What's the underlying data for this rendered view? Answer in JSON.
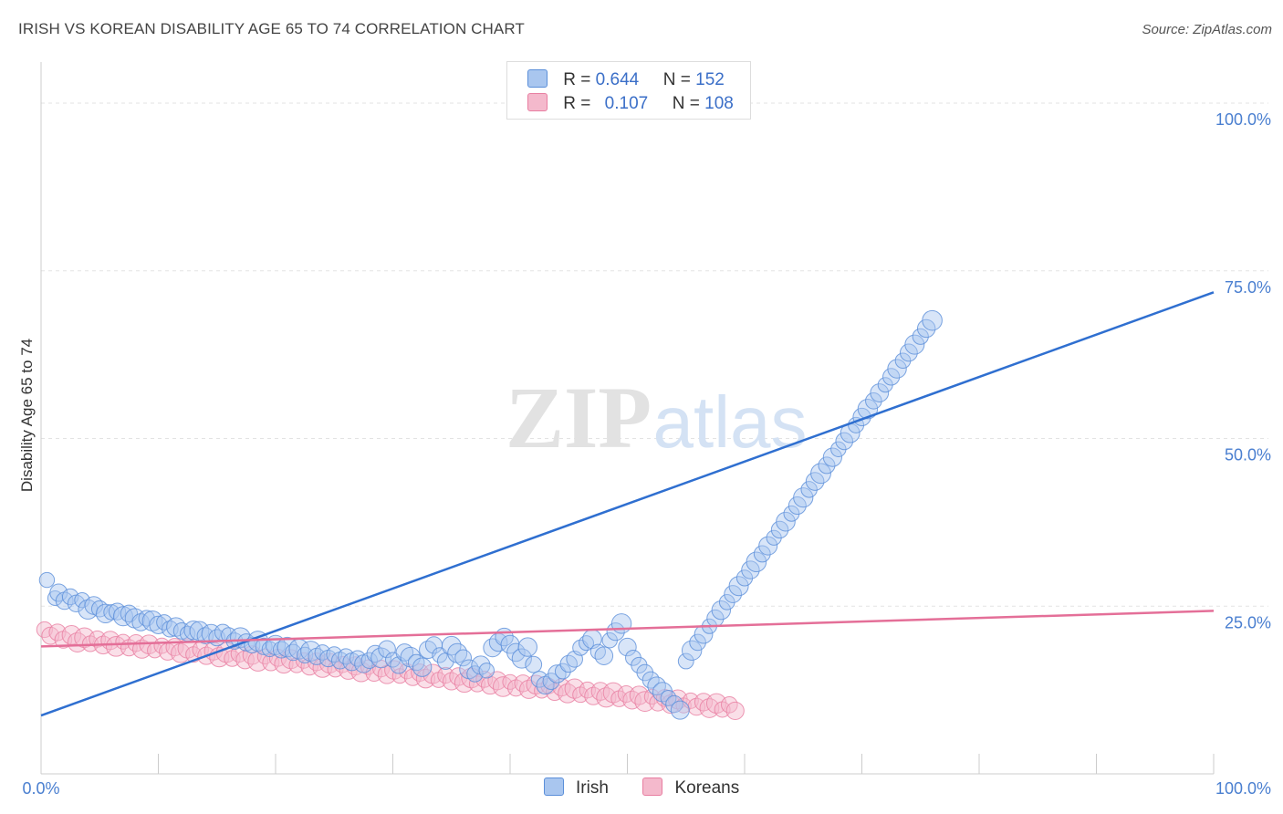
{
  "title": "IRISH VS KOREAN DISABILITY AGE 65 TO 74 CORRELATION CHART",
  "source": "Source: ZipAtlas.com",
  "watermark": {
    "zip": "ZIP",
    "atlas": "atlas"
  },
  "chart_data": {
    "type": "scatter",
    "ylabel": "Disability Age 65 to 74",
    "xlim": [
      0,
      100
    ],
    "ylim": [
      0,
      100
    ],
    "x_tick_labels": [
      "0.0%",
      "100.0%"
    ],
    "y_tick_labels": [
      {
        "value": 25,
        "label": "25.0%"
      },
      {
        "value": 50,
        "label": "50.0%"
      },
      {
        "value": 75,
        "label": "75.0%"
      },
      {
        "value": 100,
        "label": "100.0%"
      }
    ],
    "grid": "horizontal dashed",
    "legend": [
      {
        "series": "Irish",
        "r_label": "R =",
        "r": "0.644",
        "n_label": "N =",
        "n": "152"
      },
      {
        "series": "Koreans",
        "r_label": "R =",
        "r": "0.107",
        "n_label": "N =",
        "n": "108"
      }
    ],
    "series": [
      {
        "name": "Irish",
        "color": "#5b8fd9",
        "fill": "#a9c6ef",
        "trend": {
          "x": [
            0,
            100
          ],
          "y": [
            8.7,
            71.8
          ]
        },
        "points": [
          [
            0.5,
            28.9
          ],
          [
            1.2,
            26.2
          ],
          [
            1.5,
            27.0
          ],
          [
            2.0,
            25.8
          ],
          [
            2.5,
            26.4
          ],
          [
            3.0,
            25.4
          ],
          [
            3.5,
            25.9
          ],
          [
            4.0,
            24.5
          ],
          [
            4.5,
            25.1
          ],
          [
            5.0,
            24.6
          ],
          [
            5.5,
            23.9
          ],
          [
            6.0,
            24.1
          ],
          [
            6.5,
            24.2
          ],
          [
            7.0,
            23.5
          ],
          [
            7.5,
            23.9
          ],
          [
            8.0,
            23.2
          ],
          [
            8.5,
            22.6
          ],
          [
            9.0,
            23.2
          ],
          [
            9.5,
            22.8
          ],
          [
            10.0,
            22.2
          ],
          [
            10.5,
            22.6
          ],
          [
            11.0,
            21.6
          ],
          [
            11.5,
            21.9
          ],
          [
            12.0,
            21.3
          ],
          [
            12.5,
            20.9
          ],
          [
            13.0,
            21.4
          ],
          [
            13.5,
            21.3
          ],
          [
            14.0,
            20.6
          ],
          [
            14.5,
            20.9
          ],
          [
            15.0,
            20.3
          ],
          [
            15.5,
            21.1
          ],
          [
            16.0,
            20.7
          ],
          [
            16.5,
            19.8
          ],
          [
            17.0,
            20.3
          ],
          [
            17.5,
            19.6
          ],
          [
            18.0,
            19.2
          ],
          [
            18.5,
            19.8
          ],
          [
            19.0,
            19.0
          ],
          [
            19.5,
            18.6
          ],
          [
            20.0,
            19.2
          ],
          [
            20.5,
            18.5
          ],
          [
            21.0,
            18.9
          ],
          [
            21.5,
            18.1
          ],
          [
            22.0,
            18.6
          ],
          [
            22.5,
            17.7
          ],
          [
            23.0,
            18.3
          ],
          [
            23.5,
            17.5
          ],
          [
            24.0,
            18.1
          ],
          [
            24.5,
            17.2
          ],
          [
            25.0,
            17.8
          ],
          [
            25.5,
            16.9
          ],
          [
            26.0,
            17.5
          ],
          [
            26.5,
            16.7
          ],
          [
            27.0,
            17.2
          ],
          [
            27.5,
            16.4
          ],
          [
            28.0,
            16.9
          ],
          [
            28.5,
            17.9
          ],
          [
            29.0,
            17.3
          ],
          [
            29.5,
            18.6
          ],
          [
            30.0,
            17.0
          ],
          [
            30.5,
            16.2
          ],
          [
            31.0,
            18.1
          ],
          [
            31.5,
            17.4
          ],
          [
            32.0,
            16.6
          ],
          [
            32.5,
            15.9
          ],
          [
            33.0,
            18.5
          ],
          [
            33.5,
            19.2
          ],
          [
            34.0,
            17.7
          ],
          [
            34.5,
            16.8
          ],
          [
            35.0,
            19.1
          ],
          [
            35.5,
            18.0
          ],
          [
            36.0,
            17.3
          ],
          [
            36.5,
            15.6
          ],
          [
            37.0,
            14.9
          ],
          [
            37.5,
            16.2
          ],
          [
            38.0,
            15.4
          ],
          [
            38.5,
            18.8
          ],
          [
            39.0,
            19.6
          ],
          [
            39.5,
            20.4
          ],
          [
            40.0,
            19.3
          ],
          [
            40.5,
            18.1
          ],
          [
            41.0,
            17.2
          ],
          [
            41.5,
            18.9
          ],
          [
            42.0,
            16.3
          ],
          [
            42.5,
            14.1
          ],
          [
            43.0,
            13.2
          ],
          [
            43.5,
            13.8
          ],
          [
            44.0,
            14.9
          ],
          [
            44.5,
            15.3
          ],
          [
            45.0,
            16.4
          ],
          [
            45.5,
            17.1
          ],
          [
            46.0,
            18.8
          ],
          [
            46.5,
            19.5
          ],
          [
            47.0,
            20.1
          ],
          [
            47.5,
            18.2
          ],
          [
            48.0,
            17.6
          ],
          [
            48.5,
            19.9
          ],
          [
            49.0,
            21.2
          ],
          [
            49.5,
            22.4
          ],
          [
            50.0,
            18.9
          ],
          [
            50.5,
            17.3
          ],
          [
            51.0,
            16.2
          ],
          [
            51.5,
            15.1
          ],
          [
            52.0,
            14.0
          ],
          [
            52.5,
            13.1
          ],
          [
            53.0,
            12.2
          ],
          [
            53.5,
            11.3
          ],
          [
            54.0,
            10.4
          ],
          [
            54.5,
            9.5
          ],
          [
            55.0,
            16.8
          ],
          [
            55.5,
            18.4
          ],
          [
            56.0,
            19.6
          ],
          [
            56.5,
            20.8
          ],
          [
            57.0,
            22.0
          ],
          [
            57.5,
            23.2
          ],
          [
            58.0,
            24.4
          ],
          [
            58.5,
            25.6
          ],
          [
            59.0,
            26.8
          ],
          [
            59.5,
            28.0
          ],
          [
            60.0,
            29.2
          ],
          [
            60.5,
            30.4
          ],
          [
            61.0,
            31.6
          ],
          [
            61.5,
            32.8
          ],
          [
            62.0,
            34.0
          ],
          [
            62.5,
            35.2
          ],
          [
            63.0,
            36.4
          ],
          [
            63.5,
            37.6
          ],
          [
            64.0,
            38.8
          ],
          [
            64.5,
            40.0
          ],
          [
            65.0,
            41.2
          ],
          [
            65.5,
            42.4
          ],
          [
            66.0,
            43.6
          ],
          [
            66.5,
            44.8
          ],
          [
            67.0,
            46.0
          ],
          [
            67.5,
            47.2
          ],
          [
            68.0,
            48.4
          ],
          [
            68.5,
            49.6
          ],
          [
            69.0,
            50.8
          ],
          [
            69.5,
            52.0
          ],
          [
            70.0,
            53.2
          ],
          [
            70.5,
            54.4
          ],
          [
            71.0,
            55.6
          ],
          [
            71.5,
            56.8
          ],
          [
            72.0,
            58.0
          ],
          [
            72.5,
            59.2
          ],
          [
            73.0,
            60.4
          ],
          [
            73.5,
            61.6
          ],
          [
            74.0,
            62.8
          ],
          [
            74.5,
            64.0
          ],
          [
            75.0,
            65.2
          ],
          [
            75.5,
            66.4
          ],
          [
            76.0,
            67.6
          ]
        ]
      },
      {
        "name": "Koreans",
        "color": "#e87ea1",
        "fill": "#f4b9cc",
        "trend": {
          "x": [
            0,
            100
          ],
          "y": [
            19.0,
            24.3
          ]
        },
        "points": [
          [
            0.3,
            21.5
          ],
          [
            0.8,
            20.6
          ],
          [
            1.4,
            21.1
          ],
          [
            1.9,
            20.0
          ],
          [
            2.6,
            20.7
          ],
          [
            3.1,
            19.6
          ],
          [
            3.7,
            20.3
          ],
          [
            4.2,
            19.4
          ],
          [
            4.8,
            20.1
          ],
          [
            5.3,
            19.2
          ],
          [
            5.9,
            19.9
          ],
          [
            6.4,
            19.0
          ],
          [
            7.0,
            19.7
          ],
          [
            7.5,
            18.8
          ],
          [
            8.1,
            19.5
          ],
          [
            8.6,
            18.6
          ],
          [
            9.2,
            19.3
          ],
          [
            9.7,
            18.4
          ],
          [
            10.3,
            19.1
          ],
          [
            10.8,
            18.2
          ],
          [
            11.4,
            18.9
          ],
          [
            11.9,
            18.0
          ],
          [
            12.5,
            18.7
          ],
          [
            13.0,
            17.8
          ],
          [
            13.6,
            18.5
          ],
          [
            14.1,
            17.6
          ],
          [
            14.7,
            18.3
          ],
          [
            15.2,
            17.4
          ],
          [
            15.8,
            18.1
          ],
          [
            16.3,
            17.2
          ],
          [
            16.9,
            17.9
          ],
          [
            17.4,
            17.0
          ],
          [
            18.0,
            17.7
          ],
          [
            18.5,
            16.8
          ],
          [
            19.1,
            17.5
          ],
          [
            19.6,
            16.6
          ],
          [
            20.2,
            17.3
          ],
          [
            20.7,
            16.4
          ],
          [
            21.3,
            17.1
          ],
          [
            21.8,
            16.2
          ],
          [
            22.4,
            16.9
          ],
          [
            22.9,
            16.0
          ],
          [
            23.5,
            16.7
          ],
          [
            24.0,
            15.8
          ],
          [
            24.6,
            16.5
          ],
          [
            25.1,
            15.6
          ],
          [
            25.7,
            16.3
          ],
          [
            26.2,
            15.4
          ],
          [
            26.8,
            16.1
          ],
          [
            27.3,
            15.2
          ],
          [
            27.9,
            15.9
          ],
          [
            28.4,
            15.0
          ],
          [
            29.0,
            15.7
          ],
          [
            29.5,
            14.8
          ],
          [
            30.1,
            15.5
          ],
          [
            30.6,
            14.6
          ],
          [
            31.2,
            15.3
          ],
          [
            31.7,
            14.4
          ],
          [
            32.3,
            15.1
          ],
          [
            32.8,
            14.2
          ],
          [
            33.4,
            14.9
          ],
          [
            33.9,
            14.0
          ],
          [
            34.5,
            14.7
          ],
          [
            35.0,
            13.8
          ],
          [
            35.6,
            14.5
          ],
          [
            36.1,
            13.6
          ],
          [
            36.7,
            14.3
          ],
          [
            37.2,
            13.4
          ],
          [
            37.8,
            14.1
          ],
          [
            38.3,
            13.2
          ],
          [
            38.9,
            13.9
          ],
          [
            39.4,
            13.0
          ],
          [
            40.0,
            13.7
          ],
          [
            40.5,
            12.8
          ],
          [
            41.1,
            13.5
          ],
          [
            41.6,
            12.6
          ],
          [
            42.2,
            13.3
          ],
          [
            42.7,
            12.4
          ],
          [
            43.3,
            13.1
          ],
          [
            43.8,
            12.2
          ],
          [
            44.4,
            12.9
          ],
          [
            44.9,
            12.0
          ],
          [
            45.5,
            12.7
          ],
          [
            46.0,
            11.8
          ],
          [
            46.6,
            12.5
          ],
          [
            47.1,
            11.6
          ],
          [
            47.7,
            12.3
          ],
          [
            48.2,
            11.4
          ],
          [
            48.8,
            12.1
          ],
          [
            49.3,
            11.2
          ],
          [
            49.9,
            11.9
          ],
          [
            50.4,
            11.0
          ],
          [
            51.0,
            11.7
          ],
          [
            51.5,
            10.8
          ],
          [
            52.1,
            11.5
          ],
          [
            52.6,
            10.6
          ],
          [
            53.2,
            11.3
          ],
          [
            53.7,
            10.4
          ],
          [
            54.3,
            11.1
          ],
          [
            54.8,
            10.2
          ],
          [
            55.4,
            10.9
          ],
          [
            55.9,
            10.0
          ],
          [
            56.5,
            10.7
          ],
          [
            57.0,
            9.8
          ],
          [
            57.6,
            10.5
          ],
          [
            58.1,
            9.6
          ],
          [
            58.7,
            10.3
          ],
          [
            59.2,
            9.4
          ]
        ]
      }
    ]
  }
}
